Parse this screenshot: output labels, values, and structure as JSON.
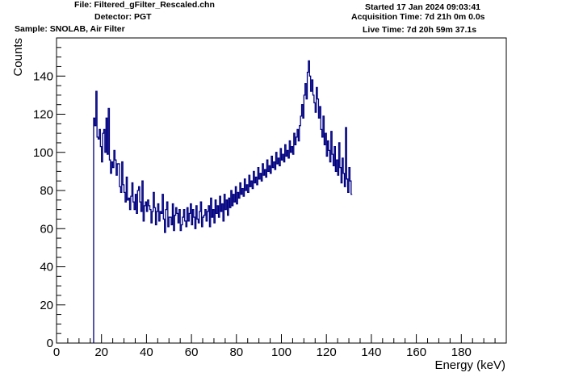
{
  "header": {
    "file": "File: Filtered_gFilter_Rescaled.chn",
    "detector": "Detector: PGT",
    "sample": "Sample: SNOLAB, Air Filter",
    "started": "Started 17 Jan 2024 09:03:41",
    "acquisition": "Acquisition Time: 7d 21h 0m 0.0s",
    "live": "Live Time: 7d 20h 59m 37.1s"
  },
  "chart_data": {
    "type": "line",
    "style": "histogram-step",
    "xlabel": "Energy (keV)",
    "ylabel": "Counts",
    "xlim": [
      0,
      200
    ],
    "ylim": [
      0,
      160
    ],
    "x_ticks": [
      0,
      20,
      40,
      60,
      80,
      100,
      120,
      140,
      160,
      180
    ],
    "y_ticks": [
      0,
      20,
      40,
      60,
      80,
      100,
      120,
      140
    ],
    "bin_width_kev": 0.5,
    "line_color": "#000080",
    "series": [
      {
        "x_start": 16.5,
        "values": [
          118,
          114,
          132,
          108,
          107,
          112,
          103,
          95,
          110,
          112,
          100,
          118,
          99,
          123,
          96,
          89,
          95,
          92,
          101,
          96,
          88,
          94,
          94,
          82,
          79,
          95,
          83,
          79,
          74,
          87,
          75,
          76,
          70,
          77,
          84,
          74,
          70,
          78,
          68,
          80,
          82,
          74,
          69,
          85,
          64,
          72,
          74,
          69,
          75,
          72,
          70,
          63,
          69,
          79,
          71,
          62,
          69,
          73,
          64,
          69,
          68,
          78,
          65,
          58,
          70,
          74,
          61,
          66,
          66,
          62,
          73,
          59,
          67,
          71,
          68,
          63,
          70,
          59,
          62,
          66,
          70,
          64,
          61,
          71,
          64,
          68,
          73,
          62,
          70,
          66,
          60,
          72,
          65,
          63,
          69,
          74,
          61,
          66,
          67,
          70,
          64,
          69,
          72,
          61,
          76,
          66,
          70,
          63,
          75,
          68,
          72,
          66,
          77,
          69,
          73,
          64,
          78,
          70,
          75,
          67,
          76,
          71,
          80,
          72,
          78,
          74,
          82,
          73,
          79,
          76,
          84,
          78,
          81,
          77,
          86,
          80,
          83,
          79,
          88,
          82,
          85,
          81,
          90,
          84,
          87,
          83,
          92,
          86,
          89,
          85,
          94,
          88,
          91,
          87,
          96,
          90,
          93,
          89,
          98,
          92,
          95,
          91,
          100,
          94,
          97,
          93,
          102,
          96,
          99,
          95,
          104,
          98,
          101,
          97,
          106,
          100,
          103,
          99,
          110,
          104,
          108,
          112,
          106,
          114,
          119,
          125,
          118,
          130,
          136,
          128,
          142,
          148,
          140,
          132,
          138,
          130,
          126,
          121,
          134,
          128,
          118,
          124,
          112,
          108,
          119,
          104,
          110,
          98,
          106,
          101,
          95,
          111,
          99,
          93,
          103,
          90,
          96,
          88,
          105,
          92,
          84,
          97,
          89,
          82,
          113,
          86,
          79,
          92,
          85,
          78
        ],
        "notes": "per-bin counts, 0.5 keV bins starting at 16.5 keV; sampled reading of the step spectrum"
      }
    ]
  }
}
